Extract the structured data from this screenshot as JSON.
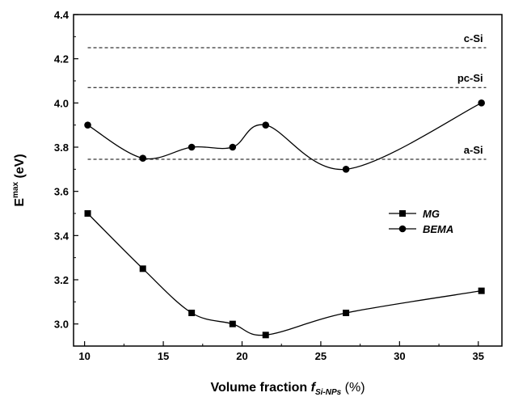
{
  "chart_data": {
    "type": "line",
    "xlabel_parts": {
      "main": "Volume fraction ",
      "f": "f",
      "sub": "Si-NPs",
      "unit": " (%)"
    },
    "ylabel_parts": {
      "E": "E",
      "sup": "max",
      "unit": " (eV)"
    },
    "xlim": [
      9.3,
      36.5
    ],
    "ylim": [
      2.9,
      4.4
    ],
    "x_ticks": [
      10,
      15,
      20,
      25,
      30,
      35
    ],
    "y_ticks": [
      3.0,
      3.2,
      3.4,
      3.6,
      3.8,
      4.0,
      4.2,
      4.4
    ],
    "x_tick_labels": [
      "10",
      "15",
      "20",
      "25",
      "30",
      "35"
    ],
    "y_tick_labels": [
      "3.0",
      "3.2",
      "3.4",
      "3.6",
      "3.8",
      "4.0",
      "4.2",
      "4.4"
    ],
    "series": [
      {
        "name": "MG",
        "marker": "square",
        "x": [
          10.2,
          13.7,
          16.8,
          19.4,
          21.5,
          26.6,
          35.2
        ],
        "y": [
          3.5,
          3.25,
          3.05,
          3.0,
          2.95,
          3.05,
          3.15
        ]
      },
      {
        "name": "BEMA",
        "marker": "circle",
        "x": [
          10.2,
          13.7,
          16.8,
          19.4,
          21.5,
          26.6,
          35.2
        ],
        "y": [
          3.9,
          3.75,
          3.8,
          3.8,
          3.9,
          3.7,
          4.0
        ]
      }
    ],
    "reference_lines": [
      {
        "label": "c-Si",
        "y": 4.25,
        "style": "dashed"
      },
      {
        "label": "pc-Si",
        "y": 4.07,
        "style": "dashed"
      },
      {
        "label": "a-Si",
        "y": 3.745,
        "style": "dashed"
      }
    ],
    "legend": {
      "placement": "right-middle"
    },
    "grid": false
  }
}
